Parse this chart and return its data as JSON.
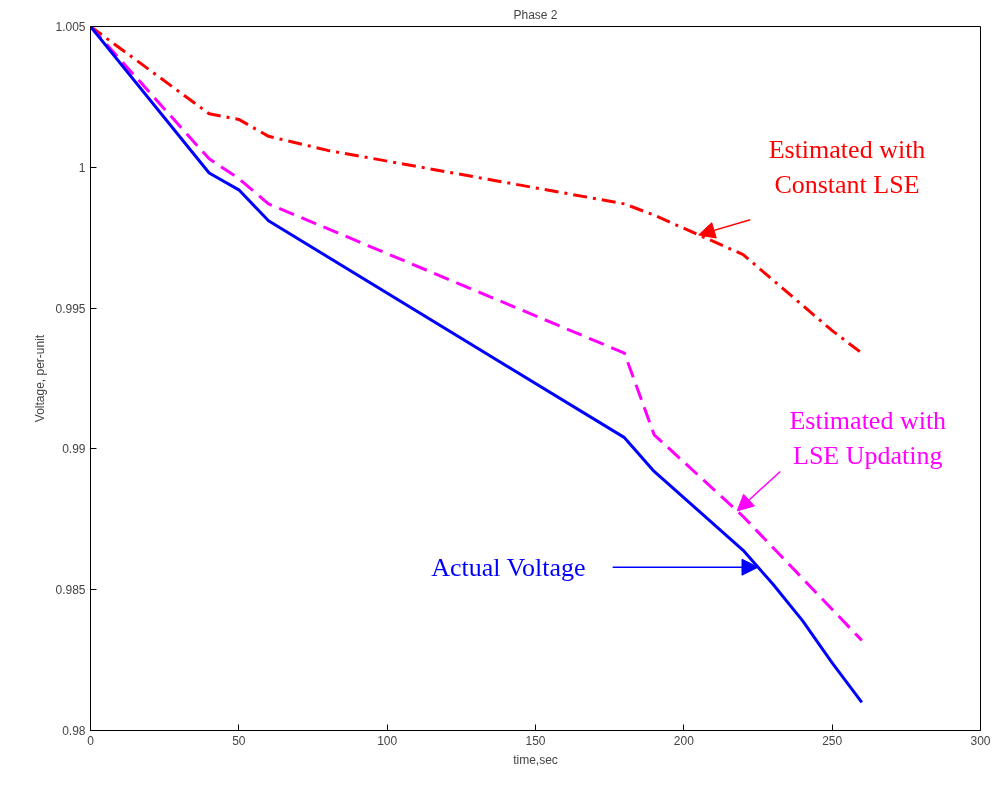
{
  "chart_data": {
    "type": "line",
    "title": "Phase 2",
    "xlabel": "time,sec",
    "ylabel": "Voltage, per-unit",
    "xlim": [
      0,
      300
    ],
    "xticks": [
      0,
      50,
      100,
      150,
      200,
      250,
      300
    ],
    "ylim": [
      0.98,
      1.005
    ],
    "yticks": [
      0.98,
      0.985,
      0.99,
      0.995,
      1,
      1.005
    ],
    "grid": false,
    "marker": "none",
    "series": [
      {
        "color": "#ff0000",
        "line_style": "dashdot",
        "x": [
          0,
          40,
          50,
          60,
          80,
          180,
          190,
          220,
          230,
          240,
          250,
          260
        ],
        "values": [
          1.005,
          1.0019,
          1.0017,
          1.0011,
          1.0006,
          0.9987,
          0.9983,
          0.9969,
          0.996,
          0.9951,
          0.9942,
          0.9934
        ]
      },
      {
        "color": "#ff00ff",
        "line_style": "dashed",
        "x": [
          0,
          40,
          50,
          60,
          180,
          190,
          220,
          240,
          260
        ],
        "values": [
          1.005,
          1.0003,
          0.9996,
          0.9987,
          0.9934,
          0.9905,
          0.9876,
          0.9854,
          0.9832
        ]
      },
      {
        "color": "#0000ff",
        "line_style": "solid",
        "x": [
          0,
          40,
          50,
          60,
          180,
          190,
          220,
          230,
          240,
          250,
          260
        ],
        "values": [
          1.005,
          0.9998,
          0.9992,
          0.9981,
          0.9904,
          0.9892,
          0.9864,
          0.9852,
          0.9839,
          0.9824,
          0.981
        ]
      }
    ],
    "annotations": [
      {
        "text": "Estimated with\nConstant LSE",
        "x": 205,
        "y": 0.9976
      },
      {
        "text": "Estimated with\nLSE Updating",
        "x": 218,
        "y": 0.9878
      },
      {
        "text": "Actual Voltage",
        "x": 225,
        "y": 0.9858
      }
    ]
  }
}
